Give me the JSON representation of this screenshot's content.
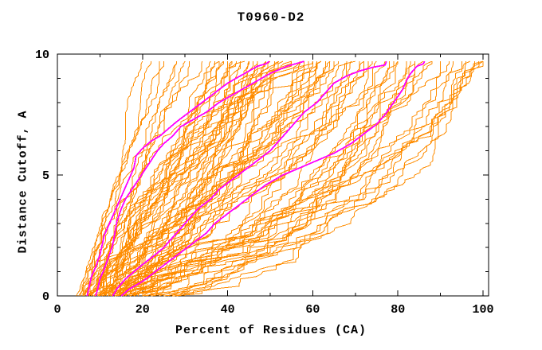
{
  "chart": {
    "title": "T0960-D2",
    "xlabel": "Percent of Residues (CA)",
    "ylabel": "Distance Cutoff, A",
    "colors": {
      "ensemble": "#FF8C00",
      "highlight": "#FF00FF",
      "axis": "#000000",
      "background": "#FFFFFF"
    }
  },
  "chart_data": {
    "type": "line",
    "title": "T0960-D2",
    "xlabel": "Percent of Residues (CA)",
    "ylabel": "Distance Cutoff, A",
    "xlim": [
      0,
      100
    ],
    "ylim": [
      0,
      10
    ],
    "x_ticks_major": [
      0,
      20,
      40,
      60,
      80,
      100
    ],
    "x_tick_minor_step": 10,
    "y_ticks_major": [
      0,
      5,
      10
    ],
    "y_tick_minor_step": 1,
    "grid": false,
    "legend": false,
    "curve_y_max": 9.7,
    "curve_y_step": 0.1,
    "highlighted_series": [
      {
        "name": "highlight-1",
        "points": [
          [
            7,
            0
          ],
          [
            7.5,
            0.4
          ],
          [
            8,
            0.8
          ],
          [
            9,
            1.2
          ],
          [
            10,
            1.7
          ],
          [
            10.5,
            2.1
          ],
          [
            11,
            2.5
          ],
          [
            12,
            2.9
          ],
          [
            13,
            3.3
          ],
          [
            14,
            3.7
          ],
          [
            15,
            4.1
          ],
          [
            16,
            4.5
          ],
          [
            17,
            4.9
          ],
          [
            18,
            5.3
          ],
          [
            18.5,
            5.8
          ],
          [
            20,
            6.1
          ],
          [
            22,
            6.4
          ],
          [
            24,
            6.6
          ],
          [
            26,
            6.9
          ],
          [
            28,
            7.2
          ],
          [
            31,
            7.6
          ],
          [
            34,
            8.0
          ],
          [
            37,
            8.4
          ],
          [
            40,
            8.8
          ],
          [
            44,
            9.2
          ],
          [
            47,
            9.5
          ],
          [
            49,
            9.6
          ],
          [
            49.8,
            9.7
          ]
        ]
      },
      {
        "name": "highlight-2",
        "points": [
          [
            9,
            0
          ],
          [
            9.5,
            0.3
          ],
          [
            10,
            0.7
          ],
          [
            11,
            1.1
          ],
          [
            12,
            1.6
          ],
          [
            13,
            2.1
          ],
          [
            13.5,
            2.6
          ],
          [
            14,
            3.1
          ],
          [
            15,
            3.6
          ],
          [
            16,
            4.0
          ],
          [
            17.5,
            4.4
          ],
          [
            19,
            4.8
          ],
          [
            20.5,
            5.2
          ],
          [
            22,
            5.6
          ],
          [
            23.5,
            6.0
          ],
          [
            25,
            6.3
          ],
          [
            27,
            6.6
          ],
          [
            29,
            7.0
          ],
          [
            32,
            7.3
          ],
          [
            35,
            7.6
          ],
          [
            38,
            8.0
          ],
          [
            42,
            8.4
          ],
          [
            46,
            8.8
          ],
          [
            50,
            9.2
          ],
          [
            54,
            9.5
          ],
          [
            57,
            9.65
          ],
          [
            58,
            9.7
          ]
        ]
      },
      {
        "name": "highlight-3",
        "points": [
          [
            13,
            0
          ],
          [
            14,
            0.3
          ],
          [
            16,
            0.7
          ],
          [
            18,
            1.0
          ],
          [
            20,
            1.3
          ],
          [
            23,
            1.7
          ],
          [
            25,
            2.0
          ],
          [
            27,
            2.4
          ],
          [
            29,
            2.8
          ],
          [
            31,
            3.2
          ],
          [
            33,
            3.6
          ],
          [
            36,
            4.0
          ],
          [
            38,
            4.4
          ],
          [
            41,
            4.8
          ],
          [
            44,
            5.2
          ],
          [
            47,
            5.6
          ],
          [
            50,
            6.0
          ],
          [
            52,
            6.4
          ],
          [
            54,
            6.8
          ],
          [
            56,
            7.2
          ],
          [
            58,
            7.6
          ],
          [
            61,
            8.0
          ],
          [
            63,
            8.4
          ],
          [
            65,
            8.8
          ],
          [
            68,
            9.1
          ],
          [
            71,
            9.3
          ],
          [
            74,
            9.45
          ],
          [
            77,
            9.55
          ],
          [
            77.3,
            9.7
          ]
        ]
      },
      {
        "name": "highlight-4",
        "points": [
          [
            15,
            0
          ],
          [
            17,
            0.3
          ],
          [
            20,
            0.6
          ],
          [
            23,
            1.0
          ],
          [
            26,
            1.4
          ],
          [
            29,
            1.8
          ],
          [
            32,
            2.2
          ],
          [
            35,
            2.6
          ],
          [
            37,
            3.0
          ],
          [
            40,
            3.4
          ],
          [
            43,
            3.8
          ],
          [
            46,
            4.2
          ],
          [
            49,
            4.6
          ],
          [
            53,
            5.0
          ],
          [
            57,
            5.3
          ],
          [
            61,
            5.6
          ],
          [
            65,
            5.9
          ],
          [
            69,
            6.3
          ],
          [
            72,
            6.7
          ],
          [
            75,
            7.1
          ],
          [
            77,
            7.5
          ],
          [
            79,
            8.0
          ],
          [
            81,
            8.5
          ],
          [
            82,
            8.9
          ],
          [
            83,
            9.2
          ],
          [
            84.5,
            9.5
          ],
          [
            86,
            9.6
          ],
          [
            86.3,
            9.7
          ]
        ]
      }
    ],
    "ensemble_series": [
      {
        "x_start": 4.5,
        "x_end": 20,
        "shape": "mid",
        "seed": 1
      },
      {
        "x_start": 5,
        "x_end": 24,
        "shape": "mid",
        "seed": 2
      },
      {
        "x_start": 5.5,
        "x_end": 28,
        "shape": "mid",
        "seed": 3
      },
      {
        "x_start": 6,
        "x_end": 22,
        "shape": "mid",
        "seed": 4
      },
      {
        "x_start": 6,
        "x_end": 31,
        "shape": "mid",
        "seed": 5
      },
      {
        "x_start": 6.5,
        "x_end": 25,
        "shape": "mid",
        "seed": 6
      },
      {
        "x_start": 7,
        "x_end": 34,
        "shape": "late",
        "seed": 7
      },
      {
        "x_start": 7,
        "x_end": 28,
        "shape": "mid",
        "seed": 8
      },
      {
        "x_start": 7.5,
        "x_end": 36,
        "shape": "mid",
        "seed": 9
      },
      {
        "x_start": 8,
        "x_end": 30,
        "shape": "mid",
        "seed": 10
      },
      {
        "x_start": 6,
        "x_end": 38,
        "shape": "mid",
        "seed": 11
      },
      {
        "x_start": 6.5,
        "x_end": 42,
        "shape": "late",
        "seed": 12
      },
      {
        "x_start": 7,
        "x_end": 40,
        "shape": "mid",
        "seed": 13
      },
      {
        "x_start": 7,
        "x_end": 46,
        "shape": "early",
        "seed": 14
      },
      {
        "x_start": 7.5,
        "x_end": 38,
        "shape": "mid",
        "seed": 15
      },
      {
        "x_start": 8,
        "x_end": 44,
        "shape": "late",
        "seed": 16
      },
      {
        "x_start": 8,
        "x_end": 50,
        "shape": "mid",
        "seed": 17
      },
      {
        "x_start": 8.5,
        "x_end": 41,
        "shape": "early",
        "seed": 18
      },
      {
        "x_start": 9,
        "x_end": 39,
        "shape": "mid",
        "seed": 19
      },
      {
        "x_start": 9,
        "x_end": 47,
        "shape": "late",
        "seed": 20
      },
      {
        "x_start": 9,
        "x_end": 55,
        "shape": "mid",
        "seed": 21
      },
      {
        "x_start": 9.5,
        "x_end": 43,
        "shape": "early",
        "seed": 22
      },
      {
        "x_start": 10,
        "x_end": 37,
        "shape": "mid",
        "seed": 23
      },
      {
        "x_start": 10,
        "x_end": 49,
        "shape": "late",
        "seed": 24
      },
      {
        "x_start": 10,
        "x_end": 58,
        "shape": "mid",
        "seed": 25
      },
      {
        "x_start": 10.5,
        "x_end": 45,
        "shape": "early",
        "seed": 26
      },
      {
        "x_start": 11,
        "x_end": 41,
        "shape": "mid",
        "seed": 27
      },
      {
        "x_start": 11,
        "x_end": 52,
        "shape": "late",
        "seed": 28
      },
      {
        "x_start": 11,
        "x_end": 62,
        "shape": "mid",
        "seed": 29
      },
      {
        "x_start": 11.5,
        "x_end": 47,
        "shape": "early",
        "seed": 30
      },
      {
        "x_start": 12,
        "x_end": 39,
        "shape": "mid",
        "seed": 31
      },
      {
        "x_start": 12,
        "x_end": 55,
        "shape": "late",
        "seed": 32
      },
      {
        "x_start": 12,
        "x_end": 64,
        "shape": "mid",
        "seed": 33
      },
      {
        "x_start": 12.5,
        "x_end": 49,
        "shape": "early",
        "seed": 34
      },
      {
        "x_start": 13,
        "x_end": 43,
        "shape": "mid",
        "seed": 35
      },
      {
        "x_start": 13,
        "x_end": 57,
        "shape": "late",
        "seed": 36
      },
      {
        "x_start": 13,
        "x_end": 65,
        "shape": "mid",
        "seed": 37
      },
      {
        "x_start": 13.5,
        "x_end": 51,
        "shape": "early",
        "seed": 38
      },
      {
        "x_start": 14,
        "x_end": 45,
        "shape": "mid",
        "seed": 39
      },
      {
        "x_start": 14,
        "x_end": 59,
        "shape": "late",
        "seed": 40
      },
      {
        "x_start": 14.5,
        "x_end": 53,
        "shape": "mid",
        "seed": 41
      },
      {
        "x_start": 15,
        "x_end": 47,
        "shape": "early",
        "seed": 42
      },
      {
        "x_start": 15,
        "x_end": 61,
        "shape": "mid",
        "seed": 43
      },
      {
        "x_start": 15.5,
        "x_end": 55,
        "shape": "late",
        "seed": 44
      },
      {
        "x_start": 16,
        "x_end": 49,
        "shape": "mid",
        "seed": 45
      },
      {
        "x_start": 16,
        "x_end": 63,
        "shape": "mid",
        "seed": 46
      },
      {
        "x_start": 8.5,
        "x_end": 60,
        "shape": "late",
        "seed": 47
      },
      {
        "x_start": 9.5,
        "x_end": 64,
        "shape": "mid",
        "seed": 48
      },
      {
        "x_start": 10.5,
        "x_end": 61,
        "shape": "early",
        "seed": 49
      },
      {
        "x_start": 7.5,
        "x_end": 57,
        "shape": "mid",
        "seed": 50
      },
      {
        "x_start": 6.5,
        "x_end": 52,
        "shape": "late",
        "seed": 51
      },
      {
        "x_start": 12.5,
        "x_end": 60,
        "shape": "mid",
        "seed": 52
      },
      {
        "x_start": 13.5,
        "x_end": 62,
        "shape": "early",
        "seed": 53
      },
      {
        "x_start": 11.5,
        "x_end": 58,
        "shape": "mid",
        "seed": 54
      },
      {
        "x_start": 10,
        "x_end": 68,
        "shape": "mid",
        "seed": 55
      },
      {
        "x_start": 11,
        "x_end": 72,
        "shape": "early",
        "seed": 56
      },
      {
        "x_start": 12,
        "x_end": 70,
        "shape": "mid",
        "seed": 57
      },
      {
        "x_start": 13,
        "x_end": 75,
        "shape": "early",
        "seed": 58
      },
      {
        "x_start": 14,
        "x_end": 68,
        "shape": "mid",
        "seed": 59
      },
      {
        "x_start": 14,
        "x_end": 78,
        "shape": "early",
        "seed": 60
      },
      {
        "x_start": 15,
        "x_end": 72,
        "shape": "mid",
        "seed": 61
      },
      {
        "x_start": 16,
        "x_end": 80,
        "shape": "early",
        "seed": 62
      },
      {
        "x_start": 16,
        "x_end": 69,
        "shape": "mid",
        "seed": 63
      },
      {
        "x_start": 17,
        "x_end": 74,
        "shape": "early",
        "seed": 64
      },
      {
        "x_start": 18,
        "x_end": 82,
        "shape": "early",
        "seed": 65
      },
      {
        "x_start": 18,
        "x_end": 71,
        "shape": "mid",
        "seed": 66
      },
      {
        "x_start": 19,
        "x_end": 77,
        "shape": "early",
        "seed": 67
      },
      {
        "x_start": 20,
        "x_end": 84,
        "shape": "early",
        "seed": 68
      },
      {
        "x_start": 20,
        "x_end": 73,
        "shape": "mid",
        "seed": 69
      },
      {
        "x_start": 21,
        "x_end": 79,
        "shape": "early",
        "seed": 70
      },
      {
        "x_start": 22,
        "x_end": 83,
        "shape": "early",
        "seed": 71
      },
      {
        "x_start": 12,
        "x_end": 80,
        "shape": "early",
        "seed": 72
      },
      {
        "x_start": 15,
        "x_end": 84,
        "shape": "early",
        "seed": 73
      },
      {
        "x_start": 17,
        "x_end": 66,
        "shape": "mid",
        "seed": 74
      },
      {
        "x_start": 15,
        "x_end": 88,
        "shape": "early",
        "seed": 75
      },
      {
        "x_start": 17,
        "x_end": 92,
        "shape": "early",
        "seed": 76
      },
      {
        "x_start": 19,
        "x_end": 86,
        "shape": "early",
        "seed": 77
      },
      {
        "x_start": 20,
        "x_end": 95,
        "shape": "early",
        "seed": 78
      },
      {
        "x_start": 22,
        "x_end": 90,
        "shape": "early",
        "seed": 79
      },
      {
        "x_start": 23,
        "x_end": 97,
        "shape": "early",
        "seed": 80
      },
      {
        "x_start": 24,
        "x_end": 88,
        "shape": "early",
        "seed": 81
      },
      {
        "x_start": 25,
        "x_end": 99,
        "shape": "early",
        "seed": 82
      },
      {
        "x_start": 26,
        "x_end": 93,
        "shape": "early",
        "seed": 83
      },
      {
        "x_start": 27,
        "x_end": 100,
        "shape": "early",
        "seed": 84
      },
      {
        "x_start": 28,
        "x_end": 96,
        "shape": "early",
        "seed": 85
      },
      {
        "x_start": 29,
        "x_end": 100,
        "shape": "early",
        "seed": 86
      },
      {
        "x_start": 30,
        "x_end": 98,
        "shape": "early",
        "seed": 87
      },
      {
        "x_start": 21,
        "x_end": 100,
        "shape": "mid",
        "seed": 88
      }
    ]
  }
}
